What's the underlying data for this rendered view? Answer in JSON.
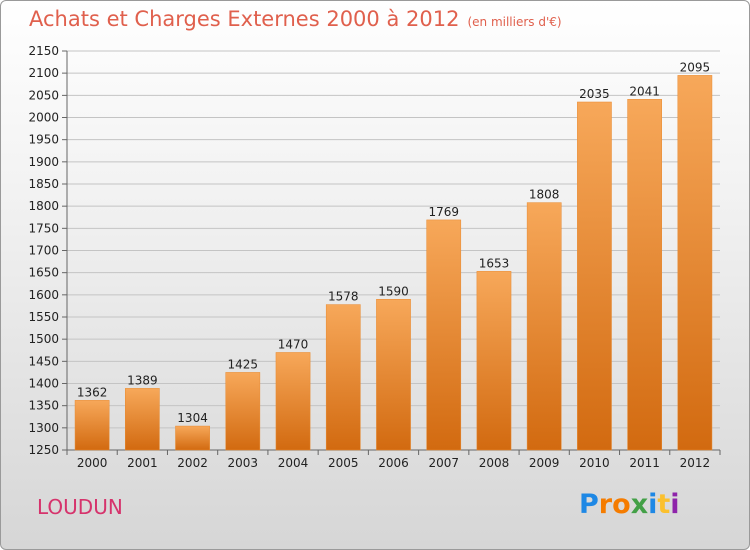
{
  "title": "Achats et Charges Externes 2000 à 2012",
  "unit": "(en milliers d'€)",
  "city": "LOUDUN",
  "logo": {
    "text": "Proxiti",
    "letters": [
      "P",
      "r",
      "o",
      "x",
      "i",
      "t",
      "i"
    ],
    "colors": [
      "#1e88e5",
      "#f57c00",
      "#f57c00",
      "#43a047",
      "#1e88e5",
      "#fbc02d",
      "#8e24aa"
    ]
  },
  "colors": {
    "bar_top": "#f7a85a",
    "bar_bottom": "#d26a10",
    "title": "#e0604d",
    "city": "#d6336c"
  },
  "chart_data": {
    "type": "bar",
    "categories": [
      "2000",
      "2001",
      "2002",
      "2003",
      "2004",
      "2005",
      "2006",
      "2007",
      "2008",
      "2009",
      "2010",
      "2011",
      "2012"
    ],
    "values": [
      1362,
      1389,
      1304,
      1425,
      1470,
      1578,
      1590,
      1769,
      1653,
      1808,
      2035,
      2041,
      2095
    ],
    "ylim": [
      1250,
      2150
    ],
    "yticks": [
      1250,
      1300,
      1350,
      1400,
      1450,
      1500,
      1550,
      1600,
      1650,
      1700,
      1750,
      1800,
      1850,
      1900,
      1950,
      2000,
      2050,
      2100,
      2150
    ],
    "grid": true,
    "legend": "none",
    "xlabel": "",
    "ylabel": ""
  }
}
